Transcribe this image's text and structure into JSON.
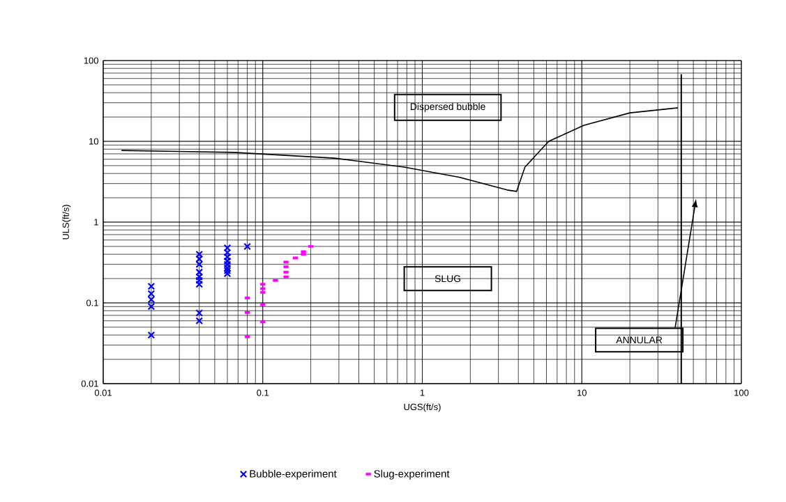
{
  "chart_data": {
    "type": "scatter",
    "xlabel": "UGS(ft/s)",
    "ylabel": "ULS(ft/s)",
    "log": "xy",
    "grid": true,
    "legend": "bottom",
    "xlim": [
      0.01,
      100
    ],
    "ylim": [
      0.01,
      100
    ],
    "xticks": [
      0.01,
      0.1,
      1,
      10,
      100
    ],
    "yticks": [
      0.01,
      0.1,
      1,
      10,
      100
    ],
    "series": [
      {
        "name": "Bubble-experiment",
        "marker": "cross",
        "color": "#0000ff",
        "x": [
          0.02,
          0.02,
          0.02,
          0.02,
          0.02,
          0.04,
          0.04,
          0.04,
          0.04,
          0.04,
          0.04,
          0.04,
          0.04,
          0.04,
          0.06,
          0.06,
          0.06,
          0.06,
          0.06,
          0.06,
          0.06,
          0.06,
          0.08
        ],
        "values": [
          0.16,
          0.13,
          0.11,
          0.09,
          0.04,
          0.4,
          0.35,
          0.3,
          0.24,
          0.21,
          0.19,
          0.17,
          0.075,
          0.06,
          0.48,
          0.42,
          0.37,
          0.33,
          0.3,
          0.27,
          0.25,
          0.23,
          0.5
        ]
      },
      {
        "name": "Slug-experiment",
        "marker": "square",
        "color": "#ff00ff",
        "x": [
          0.08,
          0.08,
          0.08,
          0.1,
          0.1,
          0.1,
          0.1,
          0.1,
          0.12,
          0.14,
          0.14,
          0.14,
          0.14,
          0.16,
          0.18,
          0.18,
          0.2
        ],
        "values": [
          0.115,
          0.076,
          0.038,
          0.17,
          0.15,
          0.135,
          0.095,
          0.058,
          0.19,
          0.32,
          0.28,
          0.24,
          0.21,
          0.36,
          0.43,
          0.4,
          0.5
        ]
      },
      {
        "type": "line",
        "marker": "none",
        "line_style": "solid",
        "color": "#000000",
        "x": [
          0.013,
          0.066,
          0.28,
          0.77,
          1.7,
          3.4,
          3.9,
          4.4,
          6.2,
          10.3,
          20,
          40
        ],
        "values": [
          7.7,
          7.3,
          6.2,
          4.8,
          3.6,
          2.5,
          2.4,
          4.8,
          10,
          15.8,
          22.5,
          26
        ]
      },
      {
        "type": "line",
        "marker": "none",
        "line_style": "solid",
        "color": "#000000",
        "x": [
          42,
          42
        ],
        "values": [
          0.01,
          68
        ]
      }
    ],
    "annotations": [
      "Dispersed bubble",
      "SLUG",
      "ANNULAR"
    ]
  }
}
